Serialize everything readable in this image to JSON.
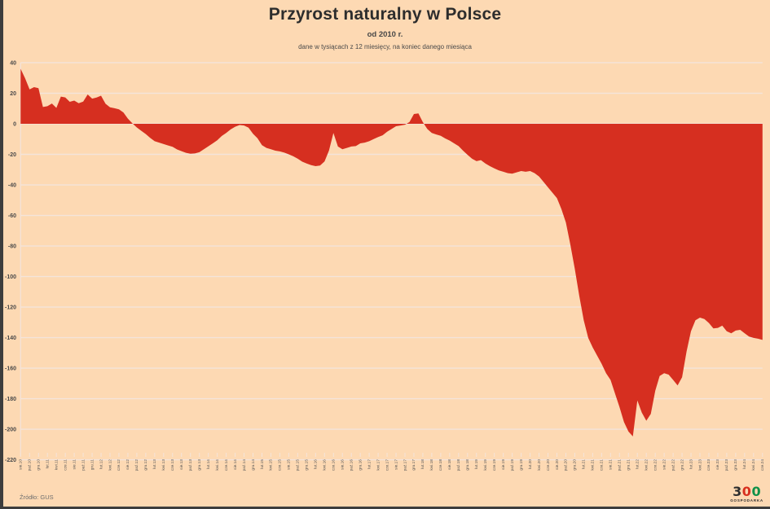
{
  "title": "Przyrost naturalny w Polsce",
  "subtitle": "od 2010 r.",
  "note": "dane w tysiącach z 12 miesięcy, na koniec danego miesiąca",
  "source": "Źródło: GUS",
  "logo": {
    "d1": "3",
    "d2": "0",
    "d3": "0",
    "caption": "GOSPODARKA",
    "c1": "#2f2f2f",
    "c2": "#d7301f",
    "c3": "#0f9149"
  },
  "colors": {
    "background": "#fdd9b3",
    "area": "#d62f20",
    "grid": "#f4e4da",
    "axis_text": "#4a4a4a",
    "tick_text": "#555555"
  },
  "chart_data": {
    "type": "area",
    "title": "Przyrost naturalny w Polsce",
    "subtitle": "od 2010 r.",
    "unit_note": "dane w tysiącach z 12 miesięcy, na koniec danego miesiąca",
    "ylim": [
      -220,
      40
    ],
    "ytick_step": 20,
    "xtick_every": 2,
    "grid": true,
    "legend": false,
    "x": [
      "sie.10",
      "wrz.10",
      "paź.10",
      "lis.10",
      "gru.10",
      "sty.11",
      "lut.11",
      "mar.11",
      "kwi.11",
      "maj.11",
      "cze.11",
      "lip.11",
      "sie.11",
      "wrz.11",
      "paź.11",
      "lis.11",
      "gru.11",
      "sty.12",
      "lut.12",
      "mar.12",
      "kwi.12",
      "maj.12",
      "cze.12",
      "lip.12",
      "sie.12",
      "wrz.12",
      "paź.12",
      "lis.12",
      "gru.12",
      "sty.13",
      "lut.13",
      "mar.13",
      "kwi.13",
      "maj.13",
      "cze.13",
      "lip.13",
      "sie.13",
      "wrz.13",
      "paź.13",
      "lis.13",
      "gru.13",
      "sty.14",
      "lut.14",
      "mar.14",
      "kwi.14",
      "maj.14",
      "cze.14",
      "lip.14",
      "sie.14",
      "wrz.14",
      "paź.14",
      "lis.14",
      "gru.14",
      "sty.15",
      "lut.15",
      "mar.15",
      "kwi.15",
      "maj.15",
      "cze.15",
      "lip.15",
      "sie.15",
      "wrz.15",
      "paź.15",
      "lis.15",
      "gru.15",
      "sty.16",
      "lut.16",
      "mar.16",
      "kwi.16",
      "maj.16",
      "cze.16",
      "lip.16",
      "sie.16",
      "wrz.16",
      "paź.16",
      "lis.16",
      "gru.16",
      "sty.17",
      "lut.17",
      "mar.17",
      "kwi.17",
      "maj.17",
      "cze.17",
      "lip.17",
      "sie.17",
      "wrz.17",
      "paź.17",
      "lis.17",
      "gru.17",
      "sty.18",
      "lut.18",
      "mar.18",
      "kwi.18",
      "maj.18",
      "cze.18",
      "lip.18",
      "sie.18",
      "wrz.18",
      "paź.18",
      "lis.18",
      "gru.18",
      "sty.19",
      "lut.19",
      "mar.19",
      "kwi.19",
      "maj.19",
      "cze.19",
      "lip.19",
      "sie.19",
      "wrz.19",
      "paź.19",
      "lis.19",
      "gru.19",
      "sty.20",
      "lut.20",
      "mar.20",
      "kwi.20",
      "maj.20",
      "cze.20",
      "lip.20",
      "sie.20",
      "wrz.20",
      "paź.20",
      "lis.20",
      "gru.20",
      "sty.21",
      "lut.21",
      "mar.21",
      "kwi.21",
      "maj.21",
      "cze.21",
      "lip.21",
      "sie.21",
      "wrz.21",
      "paź.21",
      "lis.21",
      "gru.21",
      "sty.22",
      "lut.22",
      "mar.22",
      "kwi.22",
      "maj.22",
      "cze.22",
      "lip.22",
      "sie.22",
      "wrz.22",
      "paź.22",
      "lis.22",
      "gru.22",
      "sty.23",
      "lut.23",
      "mar.23",
      "kwi.23",
      "maj.23",
      "cze.23",
      "lip.23",
      "sie.23",
      "wrz.23",
      "paź.23",
      "lis.23",
      "gru.23",
      "sty.24",
      "lut.24",
      "mar.24",
      "kwi.24",
      "maj.24",
      "cze.24"
    ],
    "values": [
      36.0,
      29.8,
      22.5,
      24.0,
      23.3,
      11.0,
      11.5,
      13.3,
      10.4,
      17.8,
      17.3,
      14.4,
      15.2,
      13.5,
      14.5,
      19.2,
      16.5,
      17.2,
      18.4,
      13.1,
      10.8,
      10.2,
      9.5,
      7.4,
      3.4,
      0.3,
      -2.4,
      -4.6,
      -6.7,
      -9.3,
      -11.4,
      -12.3,
      -13.3,
      -14.2,
      -15.1,
      -16.8,
      -17.9,
      -19.0,
      -19.6,
      -19.4,
      -18.6,
      -16.7,
      -14.7,
      -12.8,
      -10.8,
      -8.0,
      -6.0,
      -3.7,
      -1.9,
      -0.8,
      -1.1,
      -2.5,
      -6.5,
      -9.5,
      -14.0,
      -15.8,
      -16.7,
      -17.6,
      -18.1,
      -18.9,
      -20.0,
      -21.3,
      -22.9,
      -24.8,
      -26.0,
      -27.1,
      -27.7,
      -27.3,
      -24.7,
      -17.5,
      -6.0,
      -14.9,
      -16.7,
      -15.8,
      -14.9,
      -14.6,
      -12.8,
      -12.3,
      -11.4,
      -10.0,
      -8.7,
      -7.5,
      -5.2,
      -3.4,
      -1.6,
      -1.1,
      -0.6,
      1.1,
      6.4,
      6.8,
      1.1,
      -3.4,
      -6.0,
      -7.0,
      -7.9,
      -9.6,
      -11.0,
      -12.8,
      -14.6,
      -17.6,
      -20.3,
      -22.9,
      -24.5,
      -23.8,
      -26.0,
      -27.7,
      -29.2,
      -30.5,
      -31.4,
      -32.3,
      -32.7,
      -31.8,
      -30.9,
      -31.4,
      -30.9,
      -32.3,
      -34.5,
      -38.0,
      -41.6,
      -45.1,
      -48.7,
      -55.8,
      -64.7,
      -78.9,
      -94.9,
      -112.6,
      -128.6,
      -140.2,
      -146.4,
      -151.8,
      -157.1,
      -163.3,
      -167.7,
      -176.6,
      -185.5,
      -195.3,
      -201.5,
      -204.7,
      -181.1,
      -189.1,
      -194.4,
      -190.0,
      -174.8,
      -165.1,
      -163.3,
      -164.2,
      -167.7,
      -171.3,
      -166.0,
      -149.1,
      -135.8,
      -128.6,
      -126.9,
      -127.8,
      -130.4,
      -134.0,
      -133.6,
      -132.2,
      -135.8,
      -137.2,
      -135.4,
      -134.9,
      -137.2,
      -139.3,
      -140.2,
      -140.7,
      -141.5
    ]
  }
}
